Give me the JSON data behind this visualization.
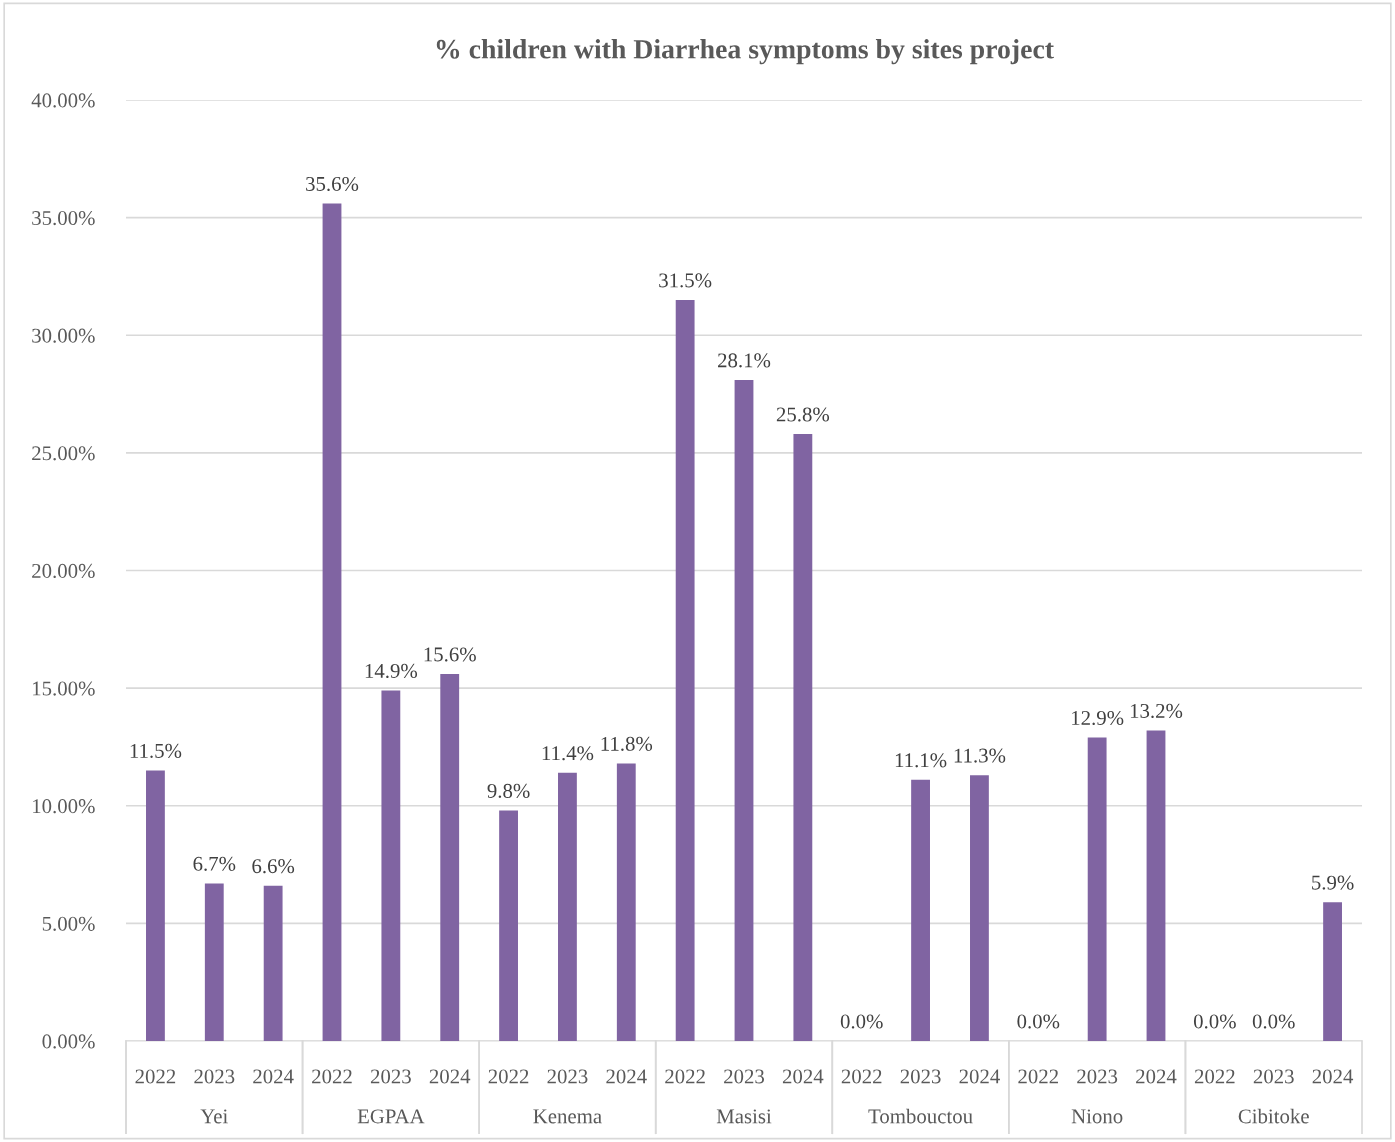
{
  "chart_data": {
    "type": "bar",
    "title": "% children with Diarrhea symptoms by sites project",
    "categories": [
      "2022",
      "2023",
      "2024",
      "2022",
      "2023",
      "2024",
      "2022",
      "2023",
      "2024",
      "2022",
      "2023",
      "2024",
      "2022",
      "2023",
      "2024",
      "2022",
      "2023",
      "2024",
      "2022",
      "2023",
      "2024"
    ],
    "values": [
      11.5,
      6.7,
      6.6,
      35.6,
      14.9,
      15.6,
      9.8,
      11.4,
      11.8,
      31.5,
      28.1,
      25.8,
      0.0,
      11.1,
      11.3,
      0.0,
      12.9,
      13.2,
      0.0,
      0.0,
      5.9
    ],
    "value_labels": [
      "11.5%",
      "6.7%",
      "6.6%",
      "35.6%",
      "14.9%",
      "15.6%",
      "9.8%",
      "11.4%",
      "11.8%",
      "31.5%",
      "28.1%",
      "25.8%",
      "0.0%",
      "11.1%",
      "11.3%",
      "0.0%",
      "12.9%",
      "13.2%",
      "0.0%",
      "0.0%",
      "5.9%"
    ],
    "annotations": [
      "Yei",
      "EGPAA",
      "Kenema",
      "Masisi",
      "Tombouctou",
      "Niono",
      "Cibitoke"
    ],
    "color": "#8064a2",
    "ylim": [
      0,
      40
    ],
    "yticks": [
      {
        "value": 0,
        "label": "0.00%"
      },
      {
        "value": 5,
        "label": "5.00%"
      },
      {
        "value": 10,
        "label": "10.00%"
      },
      {
        "value": 15,
        "label": "15.00%"
      },
      {
        "value": 20,
        "label": "20.00%"
      },
      {
        "value": 25,
        "label": "25.00%"
      },
      {
        "value": 30,
        "label": "30.00%"
      },
      {
        "value": 35,
        "label": "35.00%"
      },
      {
        "value": 40,
        "label": "40.00%"
      }
    ],
    "grid": "y",
    "legend": false
  }
}
